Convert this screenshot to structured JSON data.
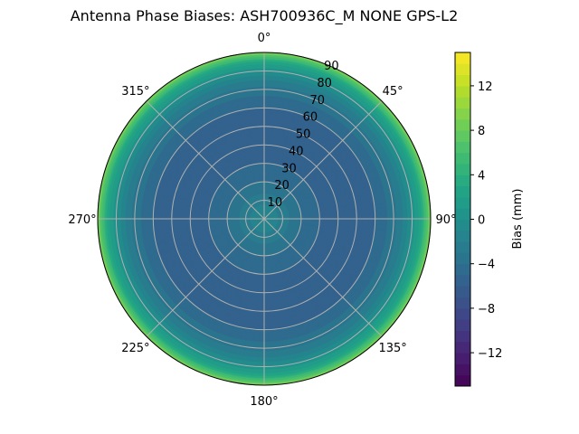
{
  "chart_data": {
    "type": "polar-contour",
    "title": "Antenna Phase Biases: ASH700936C_M    NONE GPS-L2",
    "angular_ticks": [
      "0°",
      "45°",
      "90°",
      "135°",
      "180°",
      "225°",
      "270°",
      "315°"
    ],
    "radial_ticks": [
      "10",
      "20",
      "30",
      "40",
      "50",
      "60",
      "70",
      "80",
      "90"
    ],
    "radial_range": [
      0,
      90
    ],
    "grid": true,
    "colormap": "viridis",
    "colorbar": {
      "label": "Bias (mm)",
      "range": [
        -15,
        15
      ],
      "level_step": 1,
      "ticks": [
        "−12",
        "−8",
        "−4",
        "0",
        "4",
        "8",
        "12"
      ],
      "tick_values": [
        -12,
        -8,
        -4,
        0,
        4,
        8,
        12
      ]
    },
    "profile": {
      "zenith": [
        0,
        5,
        10,
        20,
        30,
        40,
        50,
        60,
        70,
        75,
        80,
        85,
        90
      ],
      "bias": [
        -1,
        -1.5,
        -2.5,
        -4,
        -5,
        -5.5,
        -5.5,
        -5,
        -3.5,
        -2,
        0,
        3,
        9
      ]
    }
  }
}
